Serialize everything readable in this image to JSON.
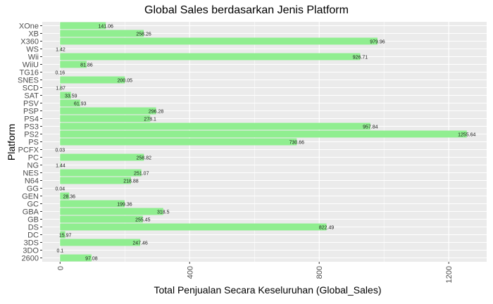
{
  "chart_data": {
    "type": "bar",
    "orientation": "horizontal",
    "title": "Global Sales berdasarkan Jenis Platform",
    "xlabel": "Total Penjualan Secara Keseluruhan (Global_Sales)",
    "ylabel": "Platform",
    "xlim": [
      -55,
      1317
    ],
    "xticks": [
      0,
      400,
      800,
      1200
    ],
    "xtick_labels": [
      "0",
      "400",
      "800",
      "1200"
    ],
    "grid": true,
    "background": "#EBEBEB",
    "bar_color": "#90EE90",
    "categories": [
      "2600",
      "3DO",
      "3DS",
      "DC",
      "DS",
      "GB",
      "GBA",
      "GC",
      "GEN",
      "GG",
      "N64",
      "NES",
      "NG",
      "PC",
      "PCFX",
      "PS",
      "PS2",
      "PS3",
      "PS4",
      "PSP",
      "PSV",
      "SAT",
      "SCD",
      "SNES",
      "TG16",
      "WiiU",
      "Wii",
      "WS",
      "X360",
      "XB",
      "XOne"
    ],
    "values": [
      97.08,
      0.1,
      247.46,
      15.97,
      822.49,
      255.45,
      318.5,
      199.36,
      28.36,
      0.04,
      218.88,
      251.07,
      1.44,
      258.82,
      0.03,
      730.66,
      1255.64,
      957.84,
      278.1,
      296.28,
      61.93,
      33.59,
      1.87,
      200.05,
      0.16,
      81.86,
      926.71,
      1.42,
      979.96,
      258.26,
      141.06
    ],
    "value_labels": [
      "97.08",
      "0.1",
      "247.46",
      "15.97",
      "822.49",
      "255.45",
      "318.5",
      "199.36",
      "28.36",
      "0.04",
      "218.88",
      "251.07",
      "1.44",
      "258.82",
      "0.03",
      "730.66",
      "1255.64",
      "957.84",
      "278.1",
      "296.28",
      "61.93",
      "33.59",
      "1.87",
      "200.05",
      "0.16",
      "81.86",
      "926.71",
      "1.42",
      "979.96",
      "258.26",
      "141.06"
    ]
  }
}
